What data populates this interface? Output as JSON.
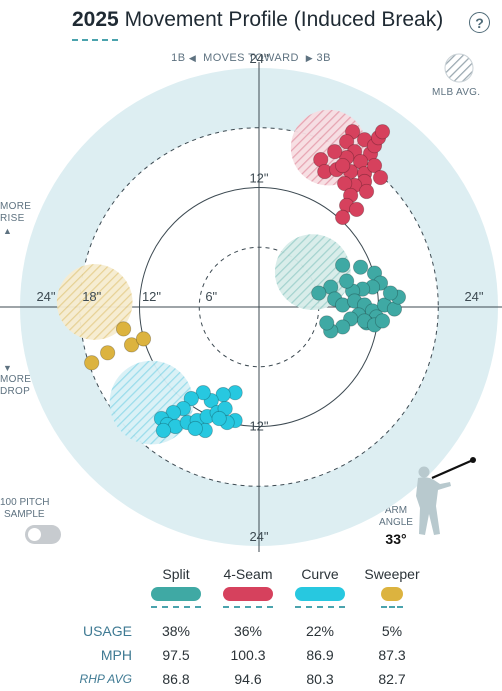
{
  "header": {
    "year": "2025",
    "title": "Movement Profile (Induced Break)",
    "help_icon": "question-icon"
  },
  "direction": {
    "left": "1B",
    "middle": "MOVES TOWARD",
    "right": "3B"
  },
  "legend_mlb": {
    "label": "MLB AVG."
  },
  "side_labels": {
    "rise": [
      "MORE",
      "RISE"
    ],
    "drop": [
      "MORE",
      "DROP"
    ]
  },
  "sample_toggle": {
    "label": [
      "100 PITCH",
      "SAMPLE"
    ],
    "on": false
  },
  "arm_angle": {
    "label": [
      "ARM",
      "ANGLE"
    ],
    "value": "33°"
  },
  "colors": {
    "Split": "#3fa9a4",
    "4-Seam": "#d6415d",
    "Curve": "#27c8e0",
    "Sweeper": "#dcb33f",
    "ring_bg": "#ddeef2",
    "grid": "#3d4a52"
  },
  "stats_table": {
    "pitches": [
      "Split",
      "4-Seam",
      "Curve",
      "Sweeper"
    ],
    "rows": [
      {
        "label": "USAGE",
        "values": [
          "38%",
          "36%",
          "22%",
          "5%"
        ]
      },
      {
        "label": "MPH",
        "values": [
          "97.5",
          "100.3",
          "86.9",
          "87.3"
        ]
      },
      {
        "label": "RHP AVG",
        "values": [
          "86.8",
          "94.6",
          "80.3",
          "82.7"
        ]
      }
    ]
  },
  "chart_data": {
    "type": "scatter",
    "title": "2025 Movement Profile (Induced Break)",
    "xlim": [
      -24,
      24
    ],
    "ylim": [
      -24,
      24
    ],
    "rings": [
      6,
      12,
      18,
      24
    ],
    "tick_labels": {
      "vertical": [
        "24\"",
        "12\"",
        "12\"",
        "24\""
      ],
      "horizontal": [
        "24\"",
        "18\"",
        "12\"",
        "6\"",
        "24\""
      ]
    },
    "mlb_avg": [
      {
        "pitch": "4-Seam",
        "x": 7,
        "y": 16,
        "r": 3.8
      },
      {
        "pitch": "Split",
        "x": 5.4,
        "y": 3.5,
        "r": 3.8
      },
      {
        "pitch": "Curve",
        "x": -10.8,
        "y": -9.6,
        "r": 4.2
      },
      {
        "pitch": "Sweeper",
        "x": -16.5,
        "y": 0.5,
        "r": 3.8
      }
    ],
    "series": [
      {
        "name": "4-Seam",
        "points": [
          [
            9.4,
            17.6
          ],
          [
            8.8,
            16.6
          ],
          [
            9.6,
            15.6
          ],
          [
            10.6,
            16.8
          ],
          [
            11.2,
            15.4
          ],
          [
            10.2,
            14.6
          ],
          [
            8.8,
            15.0
          ],
          [
            7.6,
            15.6
          ],
          [
            6.2,
            14.8
          ],
          [
            6.6,
            13.6
          ],
          [
            7.8,
            13.8
          ],
          [
            9.2,
            13.6
          ],
          [
            10.6,
            13.4
          ],
          [
            11.6,
            14.2
          ],
          [
            10.6,
            12.6
          ],
          [
            9.6,
            12.2
          ],
          [
            8.6,
            12.4
          ],
          [
            12.2,
            13.0
          ],
          [
            11.6,
            16.2
          ],
          [
            12.0,
            17.0
          ],
          [
            10.8,
            11.6
          ],
          [
            9.2,
            11.2
          ],
          [
            8.8,
            10.2
          ],
          [
            8.4,
            9.0
          ],
          [
            9.8,
            9.8
          ],
          [
            12.4,
            17.6
          ],
          [
            8.4,
            14.2
          ]
        ]
      },
      {
        "name": "Split",
        "points": [
          [
            8.4,
            4.2
          ],
          [
            10.2,
            4.0
          ],
          [
            11.6,
            3.4
          ],
          [
            12.2,
            2.4
          ],
          [
            11.4,
            2.0
          ],
          [
            10.4,
            1.8
          ],
          [
            9.4,
            1.6
          ],
          [
            8.8,
            2.6
          ],
          [
            7.2,
            2.0
          ],
          [
            6.0,
            1.4
          ],
          [
            7.6,
            0.8
          ],
          [
            8.4,
            0.2
          ],
          [
            9.6,
            0.6
          ],
          [
            10.6,
            0.2
          ],
          [
            11.4,
            -0.4
          ],
          [
            12.6,
            0.2
          ],
          [
            13.6,
            -0.2
          ],
          [
            14.0,
            1.0
          ],
          [
            13.2,
            1.4
          ],
          [
            11.8,
            -1.0
          ],
          [
            10.8,
            -1.6
          ],
          [
            10.0,
            -0.8
          ],
          [
            9.2,
            -1.2
          ],
          [
            8.4,
            -2.0
          ],
          [
            7.2,
            -2.4
          ],
          [
            6.8,
            -1.6
          ],
          [
            10.6,
            -1.4
          ],
          [
            11.6,
            -1.8
          ],
          [
            12.4,
            -1.4
          ]
        ]
      },
      {
        "name": "Curve",
        "points": [
          [
            -2.4,
            -8.6
          ],
          [
            -3.6,
            -8.8
          ],
          [
            -4.8,
            -9.4
          ],
          [
            -5.6,
            -8.6
          ],
          [
            -6.8,
            -9.2
          ],
          [
            -7.6,
            -10.2
          ],
          [
            -8.6,
            -10.6
          ],
          [
            -9.8,
            -11.2
          ],
          [
            -9.2,
            -11.8
          ],
          [
            -8.4,
            -12.0
          ],
          [
            -7.2,
            -11.6
          ],
          [
            -6.2,
            -11.4
          ],
          [
            -5.2,
            -11.0
          ],
          [
            -4.2,
            -10.6
          ],
          [
            -3.4,
            -10.2
          ],
          [
            -2.4,
            -11.4
          ],
          [
            -3.2,
            -11.6
          ],
          [
            -4.0,
            -11.2
          ],
          [
            -5.4,
            -12.4
          ],
          [
            -6.4,
            -12.2
          ],
          [
            -9.6,
            -12.4
          ]
        ]
      },
      {
        "name": "Sweeper",
        "points": [
          [
            -13.6,
            -2.2
          ],
          [
            -12.8,
            -3.8
          ],
          [
            -11.6,
            -3.2
          ],
          [
            -15.2,
            -4.6
          ],
          [
            -16.8,
            -5.6
          ]
        ]
      }
    ]
  }
}
